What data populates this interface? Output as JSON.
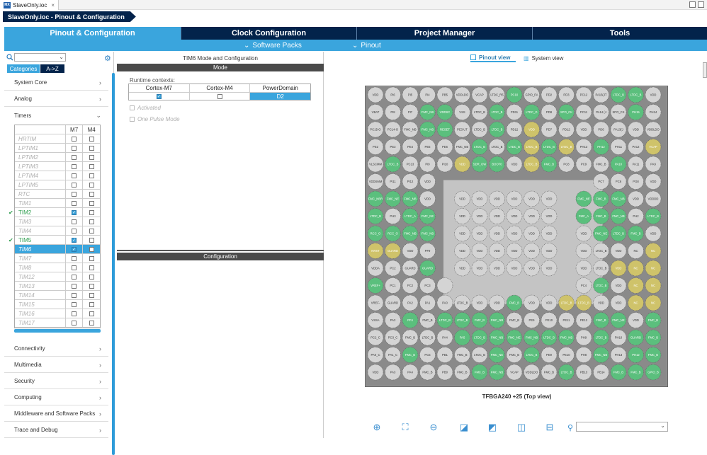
{
  "window": {
    "file_tab": "SlaveOnly.ioc",
    "icon": "mx-icon"
  },
  "breadcrumb": "SlaveOnly.ioc - Pinout & Configuration",
  "nav_tabs": [
    {
      "label": "Pinout & Configuration",
      "active": true
    },
    {
      "label": "Clock Configuration",
      "active": false
    },
    {
      "label": "Project Manager",
      "active": false
    },
    {
      "label": "Tools",
      "active": false
    }
  ],
  "subnav": {
    "software_packs": "Software Packs",
    "pinout": "Pinout"
  },
  "left": {
    "view_tabs": [
      "Categories",
      "A->Z"
    ],
    "categories_top": [
      "System Core",
      "Analog",
      "Timers"
    ],
    "timers_header": {
      "m7": "M7",
      "m4": "M4"
    },
    "timers": [
      {
        "name": "HRTIM",
        "m7": false,
        "m4": false,
        "enabled": false
      },
      {
        "name": "LPTIM1",
        "m7": false,
        "m4": false,
        "enabled": false
      },
      {
        "name": "LPTIM2",
        "m7": false,
        "m4": false,
        "enabled": false
      },
      {
        "name": "LPTIM3",
        "m7": false,
        "m4": false,
        "enabled": false
      },
      {
        "name": "LPTIM4",
        "m7": false,
        "m4": false,
        "enabled": false
      },
      {
        "name": "LPTIM5",
        "m7": false,
        "m4": false,
        "enabled": false
      },
      {
        "name": "RTC",
        "m7": false,
        "m4": false,
        "enabled": false
      },
      {
        "name": "TIM1",
        "m7": false,
        "m4": false,
        "enabled": false
      },
      {
        "name": "TIM2",
        "m7": true,
        "m4": false,
        "enabled": true,
        "checked": true
      },
      {
        "name": "TIM3",
        "m7": false,
        "m4": false,
        "enabled": false
      },
      {
        "name": "TIM4",
        "m7": false,
        "m4": false,
        "enabled": false
      },
      {
        "name": "TIM5",
        "m7": true,
        "m4": false,
        "enabled": true,
        "checked": true
      },
      {
        "name": "TIM6",
        "m7": true,
        "m4": false,
        "enabled": false,
        "selected": true
      },
      {
        "name": "TIM7",
        "m7": false,
        "m4": false,
        "enabled": false
      },
      {
        "name": "TIM8",
        "m7": false,
        "m4": false,
        "enabled": false
      },
      {
        "name": "TIM12",
        "m7": false,
        "m4": false,
        "enabled": false
      },
      {
        "name": "TIM13",
        "m7": false,
        "m4": false,
        "enabled": false
      },
      {
        "name": "TIM14",
        "m7": false,
        "m4": false,
        "enabled": false
      },
      {
        "name": "TIM15",
        "m7": false,
        "m4": false,
        "enabled": false
      },
      {
        "name": "TIM16",
        "m7": false,
        "m4": false,
        "enabled": false
      },
      {
        "name": "TIM17",
        "m7": false,
        "m4": false,
        "enabled": false
      }
    ],
    "categories_bottom": [
      "Connectivity",
      "Multimedia",
      "Security",
      "Computing",
      "Middleware and Software Packs",
      "Trace and Debug"
    ]
  },
  "mid": {
    "title": "TIM6 Mode and Configuration",
    "mode_bar": "Mode",
    "runtime_label": "Runtime contexts:",
    "cols": [
      "Cortex-M7",
      "Cortex-M4",
      "PowerDomain"
    ],
    "cortex_m7_checked": true,
    "cortex_m4_checked": false,
    "power_domain": "D2",
    "options": [
      "Activated",
      "One Pulse Mode"
    ],
    "config_bar": "Configuration"
  },
  "right": {
    "pinout_view": "Pinout view",
    "system_view": "System view",
    "package": "TFBGA240 +25 (Top view)",
    "colors": {
      "gray": "#d4d4d4",
      "green": "#5bbf7d",
      "yellow": "#cfc36a",
      "blue": "#b7c6dc",
      "accent": "#3aa5dd",
      "dark": "#03234b"
    },
    "toolbar_icons": [
      "zoom-in-icon",
      "fit-icon",
      "zoom-out-icon",
      "rotate-right-icon",
      "rotate-left-icon",
      "flip-vertical-icon",
      "flip-horizontal-icon",
      "search-icon"
    ],
    "pin_rows": [
      {
        "labels": [
          "VDD",
          "PI6",
          "PI5",
          "PI4",
          "PB5",
          "VDDLDO",
          "VCAP",
          "LTDC_R5",
          "PC10",
          "GPIO_PA",
          "PD2",
          "PD3",
          "PC12",
          "PA15(JT",
          "LTDC_B",
          "LTDC_B",
          "VDD"
        ],
        "colors": "ggggggggvgggggvvg"
      },
      {
        "labels": [
          "VBAT",
          "PI8",
          "PI7",
          "FMC_NB",
          "VDDSC",
          "VSS",
          "LTDC_B",
          "LTDC_B",
          "PD11",
          "LTDC_G",
          "PD8",
          "SPO_CK",
          "PC11",
          "PA14 (J",
          "SPO_CK",
          "PH15",
          "PH14"
        ],
        "colors": "gggvvggvgvgvgggvg"
      },
      {
        "labels": [
          "PC15-O",
          "PC14-O",
          "FMC_NB",
          "FMC_NB",
          "RESET",
          "PE3 UT",
          "LTDC_B",
          "LTDC_B",
          "PD12",
          "VDD",
          "PD7",
          "PD12",
          "VDD",
          "PD6",
          "PA13(J",
          "VDD",
          "VDDLDO"
        ],
        "colors": "gggvvggvgyggggggg"
      },
      {
        "labels": [
          "PE2",
          "PE3",
          "PE4",
          "PE5",
          "PE6",
          "FMC_NB",
          "LTDC_B",
          "LTDC_B",
          "LTDC_B",
          "LTDC_B",
          "LTDC_B",
          "LTDC_B",
          "PH13",
          "PH12",
          "PH11",
          "PA12",
          "VCAP"
        ],
        "colors": "ggggggvgvyvygvggy"
      },
      {
        "labels": [
          "VLSCMM",
          "LTDC_B",
          "PC13",
          "PI9",
          "PI10",
          "VDD",
          "SDR_OW",
          "BOOT0",
          "VDD",
          "LTDC_B",
          "FMC_B",
          "PC8",
          "PC9",
          "FMC_B",
          "PA10",
          "PA11",
          "PA9"
        ],
        "colors": "gvgggyvvgyvgggvgg"
      },
      {
        "labels": [
          "VDDSMM",
          "PI11",
          "PI12",
          "VDD",
          "",
          "",
          "",
          "",
          "",
          "",
          "",
          "",
          "",
          "PC7",
          "PC6",
          "PG8",
          "VDD"
        ],
        "colors": "ggggxxxxxxxxxgggg"
      },
      {
        "labels": [
          "FMC_NBR",
          "FMC_NE",
          "FMC_NB",
          "VDD",
          "",
          "VDD",
          "VDD",
          "VDD",
          "VDD",
          "VDD",
          "VDD",
          "",
          "FMC_NE",
          "FMC_B",
          "FMC_NB",
          "VDD",
          "VDDDD"
        ],
        "colors": "vvvgxggggggxvvvgg"
      },
      {
        "labels": [
          "LTDC_B",
          "PH3",
          "LTDC_A",
          "FMC_NE",
          "",
          "VDD",
          "VDD",
          "VDD",
          "VDD",
          "VDD",
          "VDD",
          "",
          "FMC_A",
          "FMC_B",
          "FMC_NB",
          "PH2",
          "LTDC_B"
        ],
        "colors": "vgvvxggggggxvvvgv"
      },
      {
        "labels": [
          "RCC_O",
          "RCC_O",
          "FMC_NB",
          "FMC_NB",
          "",
          "VDD",
          "VDD",
          "VDD",
          "VDD",
          "VDD",
          "VDD",
          "",
          "VDD",
          "FMC_NE",
          "LTDC_B",
          "FMC_B",
          "VDD"
        ],
        "colors": "vvvvxggggggxgvvvg"
      },
      {
        "labels": [
          "NRST",
          "GUARD",
          "VDD",
          "PF9",
          "",
          "VDD",
          "VDD",
          "VDD",
          "VDD",
          "VDD",
          "VDD",
          "",
          "VDD",
          "LTDC_B",
          "VDD",
          "NC",
          "NC"
        ],
        "colors": "yyggxggggggxggggy"
      },
      {
        "labels": [
          "VDDA",
          "PC2",
          "GUARD",
          "GUARD",
          "",
          "VDD",
          "VDD",
          "VDD",
          "VDD",
          "VDD",
          "VDD",
          "",
          "VDD",
          "LTDC_B",
          "VDD",
          "NC",
          "NC"
        ],
        "colors": "gggvxggggggxggyyy"
      },
      {
        "labels": [
          "VREF+",
          "PC1",
          "PC2",
          "PC3",
          "",
          "",
          "",
          "",
          "",
          "",
          "",
          "",
          "PC4",
          "LTDC_B",
          "VDD",
          "NC",
          "NC"
        ],
        "colors": "vggggxxxxxxxgvgyy"
      },
      {
        "labels": [
          "VREF-",
          "GUARD",
          "PA2",
          "PA1",
          "PA0",
          "LTDC_B",
          "VDD",
          "VDD",
          "FMC_B",
          "VDD",
          "VDD",
          "LTDC_B",
          "LTDC_B",
          "VDD",
          "VDD",
          "NC",
          "NC"
        ],
        "colors": "ggggggggvggyyggyy"
      },
      {
        "labels": [
          "VSSA",
          "PA3",
          "PF4",
          "FMC_B",
          "LTDC_B",
          "LTDC_B",
          "FMC_B",
          "FMC_NB",
          "FMC_B",
          "PE9",
          "PE10",
          "PE11",
          "PE12",
          "FMC_B",
          "FMC_NE",
          "VDD",
          "FMC_B"
        ],
        "colors": "ggvgvvvvgggggvvgv"
      },
      {
        "labels": [
          "PC2_C",
          "PC3_C",
          "FMC_B",
          "LTDC_B",
          "PA4",
          "PA5",
          "LTDC_B",
          "FMC_NB",
          "FMC_NE",
          "FMC_NB",
          "LTDC_B",
          "FMC_NB",
          "PH9",
          "LTDC_B",
          "PH10",
          "GUARD",
          "FMC_B"
        ],
        "colors": "gggggvvvvvvvgvgvv"
      },
      {
        "labels": [
          "PA0_C",
          "PA1_C",
          "FMC_B",
          "PC5",
          "PB1",
          "FMC_B",
          "LTDC_B",
          "FMC_NE",
          "FMC_B",
          "LTDC_B",
          "PE9",
          "PE10",
          "PH8",
          "FMC_NB",
          "PH13",
          "PH12",
          "FMC_B"
        ],
        "colors": "ggvggggvgvgggvgvv"
      },
      {
        "labels": [
          "VDD",
          "PA3",
          "PA4",
          "FMC_B",
          "PB0",
          "FMC_B",
          "FMC_B",
          "FMC_NB",
          "VCAP",
          "VDDLDO",
          "FMC_B",
          "LTDC_B",
          "PB13",
          "PB14",
          "FMC_B",
          "FMC_B",
          "GPIO_B"
        ],
        "colors": "ggggggvvgggvggvvv"
      }
    ]
  }
}
